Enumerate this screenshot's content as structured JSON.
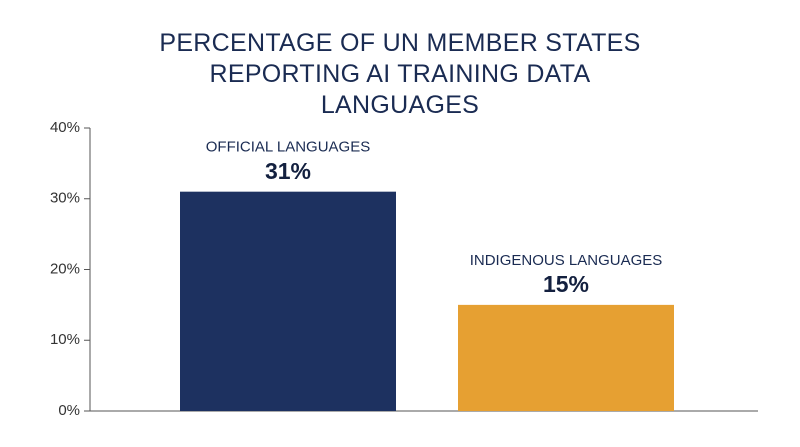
{
  "chart_data": {
    "type": "bar",
    "title": "PERCENTAGE OF UN MEMBER STATES REPORTING AI TRAINING DATA LANGUAGES",
    "categories": [
      "OFFICIAL LANGUAGES",
      "INDIGENOUS LANGUAGES"
    ],
    "values": [
      31,
      15
    ],
    "value_labels": [
      "31%",
      "15%"
    ],
    "colors": [
      "#1d3160",
      "#e6a032"
    ],
    "ylim": [
      0,
      40
    ],
    "yticks": [
      {
        "value": 0,
        "label": "0%"
      },
      {
        "value": 10,
        "label": "10%"
      },
      {
        "value": 20,
        "label": "20%"
      },
      {
        "value": 30,
        "label": "30%"
      },
      {
        "value": 40,
        "label": "40%"
      }
    ]
  }
}
